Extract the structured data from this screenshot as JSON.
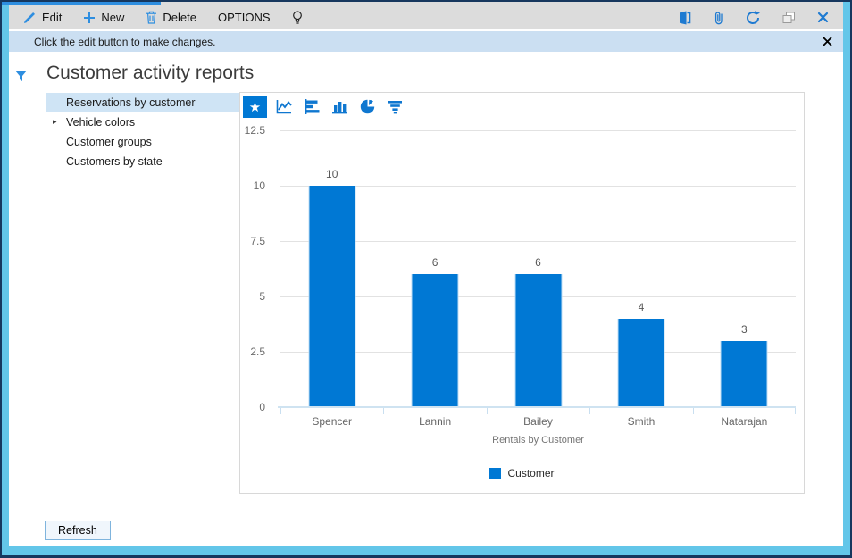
{
  "toolbar": {
    "edit_label": "Edit",
    "new_label": "New",
    "delete_label": "Delete",
    "options_label": "OPTIONS",
    "icons": [
      "pencil-icon",
      "plus-icon",
      "trash-icon",
      "lightbulb-icon",
      "dynamics-logo-icon",
      "paperclip-icon",
      "refresh-icon",
      "popout-icon",
      "close-icon"
    ]
  },
  "notification": {
    "text": "Click the edit button to make changes.",
    "close_icon": "close-icon"
  },
  "page": {
    "title": "Customer activity reports",
    "title_icon": "filter-funnel-icon"
  },
  "nav": {
    "items": [
      {
        "label": "Reservations by customer",
        "selected": true
      },
      {
        "label": "Vehicle colors",
        "expandable": true
      },
      {
        "label": "Customer groups"
      },
      {
        "label": "Customers by state"
      }
    ]
  },
  "chart_toolbar": {
    "icons": [
      "star-icon",
      "line-chart-icon",
      "hbar-chart-icon",
      "column-chart-icon",
      "pie-chart-icon",
      "funnel-chart-icon"
    ],
    "selected": "star-icon",
    "star_glyph": "★"
  },
  "chart_data": {
    "type": "bar",
    "title": "",
    "categories": [
      "Spencer",
      "Lannin",
      "Bailey",
      "Smith",
      "Natarajan"
    ],
    "values": [
      10,
      6,
      6,
      4,
      3
    ],
    "xlabel": "Rentals by Customer",
    "ylabel": "",
    "ylim": [
      0,
      12.5
    ],
    "yticks": [
      0,
      2.5,
      5,
      7.5,
      10,
      12.5
    ],
    "legend": [
      "Customer"
    ],
    "legend_position": "bottom",
    "grid": true,
    "bar_color": "#0078d4",
    "value_labels": true
  },
  "footer": {
    "refresh_label": "Refresh"
  },
  "colors": {
    "accent": "#0078d4",
    "icon_blue": "#2e8ee0",
    "frame_cyan": "#63c6e9",
    "frame_navy": "#16375e",
    "toolbar_bg": "#dcdcdc",
    "notification_bg": "#cbdff2",
    "nav_selected_bg": "#cfe4f5"
  }
}
